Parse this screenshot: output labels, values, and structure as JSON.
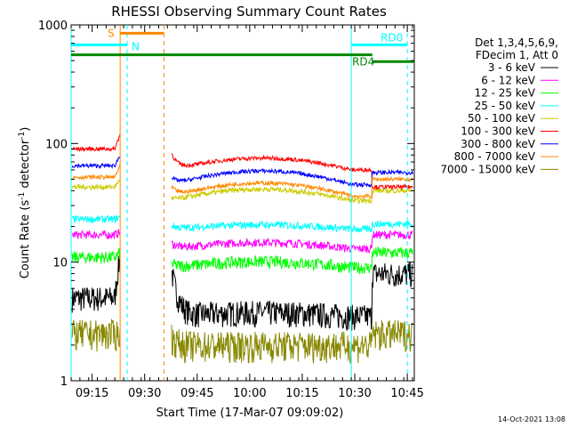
{
  "chart_data": {
    "type": "line",
    "title": "RHESSI Observing Summary Count Rates",
    "xlabel": "Start Time (17-Mar-07 09:09:02)",
    "ylabel_prefix": "Count Rate (s",
    "ylabel_exp1": "-1",
    "ylabel_mid": " detector",
    "ylabel_exp2": "-1",
    "ylabel_suffix": ")",
    "yscale": "log",
    "ylim": [
      1,
      1000
    ],
    "xlim_min": [
      0,
      98
    ],
    "xticks": [
      {
        "label": "09:15",
        "min": 6
      },
      {
        "label": "09:30",
        "min": 21
      },
      {
        "label": "09:45",
        "min": 36
      },
      {
        "label": "10:00",
        "min": 51
      },
      {
        "label": "10:15",
        "min": 66
      },
      {
        "label": "10:30",
        "min": 81
      },
      {
        "label": "10:45",
        "min": 96
      }
    ],
    "yticks": [
      {
        "label": "1",
        "value": 1
      },
      {
        "label": "10",
        "value": 10
      },
      {
        "label": "100",
        "value": 100
      },
      {
        "label": "1000",
        "value": 1000
      }
    ],
    "legend_header": [
      "Det 1,3,4,5,6,9,",
      "FDecim 1, Att 0"
    ],
    "series": [
      {
        "name": "3 - 6 keV",
        "color": "#000000",
        "pre": 5,
        "spike": 11,
        "post": 4,
        "dip": 3.5,
        "end": 8,
        "noise": 0.25
      },
      {
        "name": "6 - 12 keV",
        "color": "#ff00ff",
        "pre": 17,
        "spike": 18,
        "post": 16,
        "dip": 13,
        "end": 17,
        "noise": 0.08
      },
      {
        "name": "12 - 25 keV",
        "color": "#00ff00",
        "pre": 11,
        "spike": 12,
        "post": 11,
        "dip": 9,
        "end": 12,
        "noise": 0.12
      },
      {
        "name": "25 - 50 keV",
        "color": "#00ffff",
        "pre": 23,
        "spike": 24,
        "post": 22,
        "dip": 19,
        "end": 21,
        "noise": 0.07
      },
      {
        "name": "50 - 100 keV",
        "color": "#cccc00",
        "pre": 43,
        "spike": 50,
        "post": 48,
        "dip": 33,
        "end": 40,
        "noise": 0.05
      },
      {
        "name": "100 - 300 keV",
        "color": "#ff0000",
        "pre": 90,
        "spike": 120,
        "post": 88,
        "dip": 60,
        "end": 43,
        "noise": 0.04
      },
      {
        "name": "300 - 800 keV",
        "color": "#0000ff",
        "pre": 65,
        "spike": 80,
        "post": 70,
        "dip": 45,
        "end": 57,
        "noise": 0.04
      },
      {
        "name": "800 - 7000 keV",
        "color": "#ff8800",
        "pre": 52,
        "spike": 65,
        "post": 55,
        "dip": 36,
        "end": 50,
        "noise": 0.04
      },
      {
        "name": "7000 - 15000 keV",
        "color": "#888800",
        "pre": 2.5,
        "spike": 2.5,
        "post": 2,
        "dip": 2,
        "end": 2.5,
        "noise": 0.3
      }
    ],
    "gaps": [
      {
        "from_min": 14,
        "to_min": 28.5
      }
    ],
    "annotations": [
      {
        "text": "S",
        "color": "#ff8800",
        "type": "bar",
        "start_min": 14,
        "end_min": 26.5,
        "value": 850
      },
      {
        "text": "N",
        "color": "#00ffff",
        "type": "bar",
        "start_min": 0,
        "end_min": 16,
        "value": 680
      },
      {
        "text": "RD0",
        "color": "#00ffff",
        "type": "bar",
        "start_min": 80,
        "end_min": 96,
        "value": 680
      },
      {
        "text": "RD4",
        "color": "#008800",
        "type": "bar",
        "start_min": 0,
        "end_min": 86,
        "value": 560
      },
      {
        "text": "",
        "color": "#008800",
        "type": "bar",
        "start_min": 86,
        "end_min": 98,
        "value": 490
      }
    ],
    "vlines": [
      {
        "min": 0,
        "color": "#00ffff",
        "style": "solid"
      },
      {
        "min": 14,
        "color": "#ff8800",
        "style": "solid"
      },
      {
        "min": 16,
        "color": "#00ffff",
        "style": "dashed"
      },
      {
        "min": 26.5,
        "color": "#ff8800",
        "style": "dashed"
      },
      {
        "min": 80,
        "color": "#00ffff",
        "style": "solid"
      },
      {
        "min": 96,
        "color": "#00ffff",
        "style": "dashed"
      }
    ]
  },
  "footer": {
    "date": "14-Oct-2021 13:08"
  }
}
